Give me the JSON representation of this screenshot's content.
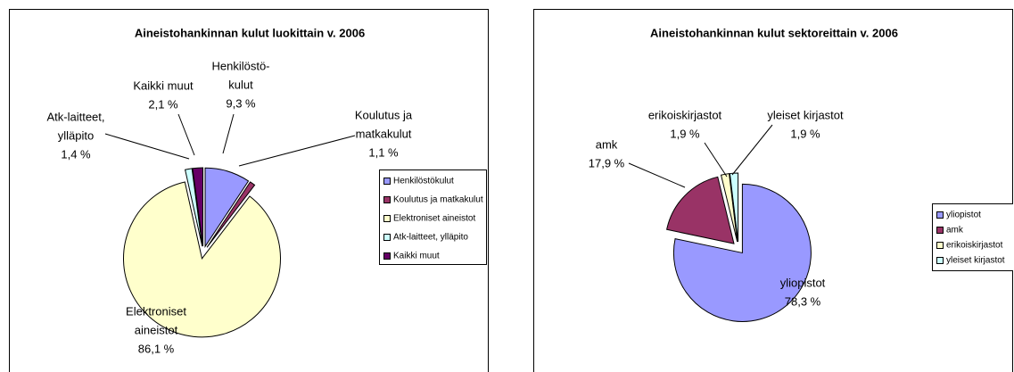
{
  "chart_data": [
    {
      "type": "pie",
      "title": "Aineistohankinnan kulut luokittain v. 2006",
      "categories": [
        "Henkilöstökulut",
        "Koulutus ja matkakulut",
        "Elektroniset aineistot",
        "Atk-laitteet, ylläpito",
        "Kaikki muut"
      ],
      "values": [
        9.3,
        1.1,
        86.1,
        1.4,
        2.1
      ],
      "value_labels": [
        "9,3 %",
        "1,1 %",
        "86,1 %",
        "1,4 %",
        "2,1 %"
      ],
      "data_label_names": [
        [
          "Henkilöstö-",
          "kulut"
        ],
        [
          "Koulutus ja",
          "matkakulut"
        ],
        [
          "Elektroniset",
          "aineistot"
        ],
        [
          "Atk-laitteet,",
          "ylläpito"
        ],
        [
          "Kaikki muut"
        ]
      ],
      "colors": [
        "#9999FF",
        "#993366",
        "#FFFFCC",
        "#CCFFFF",
        "#660066"
      ],
      "legend": "right"
    },
    {
      "type": "pie",
      "title": "Aineistohankinnan kulut sektoreittain v. 2006",
      "categories": [
        "yliopistot",
        "amk",
        "erikoiskirjastot",
        "yleiset kirjastot"
      ],
      "values": [
        78.3,
        17.9,
        1.9,
        1.9
      ],
      "value_labels": [
        "78,3 %",
        "17,9 %",
        "1,9 %",
        "1,9 %"
      ],
      "data_label_names": [
        [
          "yliopistot"
        ],
        [
          "amk"
        ],
        [
          "erikoiskirjastot"
        ],
        [
          "yleiset kirjastot"
        ]
      ],
      "colors": [
        "#9999FF",
        "#993366",
        "#FFFFCC",
        "#CCFFFF"
      ],
      "legend": "right"
    }
  ]
}
